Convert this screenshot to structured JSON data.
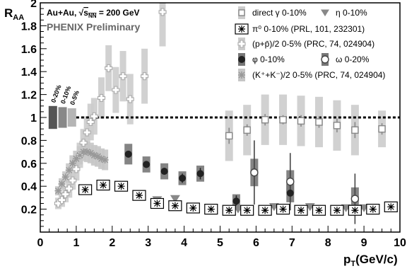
{
  "chart_data": {
    "type": "scatter",
    "title": "",
    "collision_label": "Au+Au, √s_NN = 200 GeV",
    "collision_parts": {
      "pre": "Au+Au,  ",
      "root": "s",
      "sub": "NN",
      "post": " = 200 GeV"
    },
    "subtitle": "PHENIX Preliminary",
    "xlabel": "p_T(GeV/c)",
    "ylabel": "R_AA",
    "xlim": [
      0,
      10
    ],
    "ylim": [
      0,
      2
    ],
    "x_ticks": [
      "0",
      "1",
      "2",
      "3",
      "4",
      "5",
      "6",
      "7",
      "8",
      "9",
      "10"
    ],
    "y_ticks": [
      "0.2",
      "0.4",
      "0.6",
      "0.8",
      "1",
      "1.2",
      "1.4",
      "1.6",
      "1.8",
      "2"
    ],
    "reference_line": 1,
    "grid": false,
    "legend_position": "top-right",
    "norm_boxes": [
      {
        "label": "0-20%",
        "x": 0.35,
        "half_width": 1,
        "color": "#555555"
      },
      {
        "label": "0-10%",
        "x": 0.62,
        "half_width": 0.9,
        "color": "#888888"
      },
      {
        "label": "0-5%",
        "x": 0.88,
        "half_width": 0.8,
        "color": "#b5b5b5"
      }
    ],
    "series": [
      {
        "name": "direct γ 0-10%",
        "marker": "open-square",
        "color": "#888888",
        "band_color": "#cccccc",
        "points": [
          {
            "x": 5.25,
            "y": 0.84,
            "err": 0.07,
            "sys": 0.22
          },
          {
            "x": 5.75,
            "y": 0.89,
            "err": 0.05,
            "sys": 0.22
          },
          {
            "x": 6.25,
            "y": 0.98,
            "err": 0.05,
            "sys": 0.22
          },
          {
            "x": 6.75,
            "y": 0.98,
            "err": 0.04,
            "sys": 0.22
          },
          {
            "x": 7.25,
            "y": 0.97,
            "err": 0.05,
            "sys": 0.22
          },
          {
            "x": 7.75,
            "y": 0.96,
            "err": 0.05,
            "sys": 0.22
          },
          {
            "x": 8.25,
            "y": 0.93,
            "err": 0.06,
            "sys": 0.22
          },
          {
            "x": 8.75,
            "y": 0.89,
            "err": 0.07,
            "sys": 0.22
          },
          {
            "x": 9.5,
            "y": 0.9,
            "err": 0.05,
            "sys": 0.16
          }
        ]
      },
      {
        "name": "η 0-10%",
        "marker": "triangle-down",
        "color": "#888888",
        "points": [
          {
            "x": 2.75,
            "y": 0.33
          },
          {
            "x": 3.25,
            "y": 0.28
          },
          {
            "x": 3.75,
            "y": 0.29
          },
          {
            "x": 4.25,
            "y": 0.22
          },
          {
            "x": 4.75,
            "y": 0.21
          },
          {
            "x": 5.5,
            "y": 0.2
          },
          {
            "x": 6.5,
            "y": 0.22
          },
          {
            "x": 7.5,
            "y": 0.22
          },
          {
            "x": 8.5,
            "y": 0.21
          },
          {
            "x": 9.0,
            "y": 0.21
          }
        ]
      },
      {
        "name": "π⁰ 0-10% (PRL, 101, 232301)",
        "marker": "boxed-star",
        "color": "#000000",
        "points": [
          {
            "x": 1.25,
            "y": 0.37
          },
          {
            "x": 1.75,
            "y": 0.41
          },
          {
            "x": 2.25,
            "y": 0.4
          },
          {
            "x": 2.75,
            "y": 0.32
          },
          {
            "x": 3.25,
            "y": 0.25
          },
          {
            "x": 3.75,
            "y": 0.23
          },
          {
            "x": 4.25,
            "y": 0.21
          },
          {
            "x": 4.75,
            "y": 0.2
          },
          {
            "x": 5.25,
            "y": 0.19
          },
          {
            "x": 5.75,
            "y": 0.19
          },
          {
            "x": 6.25,
            "y": 0.19
          },
          {
            "x": 6.75,
            "y": 0.2
          },
          {
            "x": 7.25,
            "y": 0.19
          },
          {
            "x": 7.75,
            "y": 0.19
          },
          {
            "x": 8.25,
            "y": 0.19
          },
          {
            "x": 8.75,
            "y": 0.19
          },
          {
            "x": 9.25,
            "y": 0.2
          },
          {
            "x": 9.75,
            "y": 0.22
          }
        ]
      },
      {
        "name": "(p+p̄)/2 0-5% (PRC, 74, 024904)",
        "marker": "open-cross",
        "color": "#aaaaaa",
        "band_color": "#cccccc",
        "points": [
          {
            "x": 0.5,
            "y": 0.25,
            "sys": 0.05
          },
          {
            "x": 0.6,
            "y": 0.28,
            "sys": 0.06
          },
          {
            "x": 0.7,
            "y": 0.33,
            "sys": 0.07
          },
          {
            "x": 0.8,
            "y": 0.38,
            "sys": 0.08
          },
          {
            "x": 0.9,
            "y": 0.45,
            "sys": 0.08
          },
          {
            "x": 1.0,
            "y": 0.55,
            "sys": 0.1
          },
          {
            "x": 1.1,
            "y": 0.67,
            "sys": 0.11
          },
          {
            "x": 1.2,
            "y": 0.78,
            "sys": 0.12
          },
          {
            "x": 1.3,
            "y": 0.87,
            "sys": 0.14
          },
          {
            "x": 1.4,
            "y": 0.96,
            "sys": 0.16
          },
          {
            "x": 1.5,
            "y": 1.01,
            "sys": 0.16
          },
          {
            "x": 1.7,
            "y": 1.17,
            "sys": 0.18
          },
          {
            "x": 1.9,
            "y": 1.43,
            "sys": 0.2
          },
          {
            "x": 2.1,
            "y": 1.24,
            "sys": 0.2
          },
          {
            "x": 2.3,
            "y": 1.36,
            "sys": 0.22
          },
          {
            "x": 2.5,
            "y": 1.16,
            "sys": 0.22
          },
          {
            "x": 2.9,
            "y": 1.36,
            "sys": 0.24
          },
          {
            "x": 3.4,
            "y": 1.92,
            "sys": 0.3
          }
        ]
      },
      {
        "name": "φ 0-10%",
        "marker": "filled-circle",
        "color": "#222222",
        "band_color": "#777777",
        "points": [
          {
            "x": 2.45,
            "y": 0.68,
            "err": 0.03,
            "sys": 0.09
          },
          {
            "x": 2.95,
            "y": 0.59,
            "err": 0.03,
            "sys": 0.07
          },
          {
            "x": 3.45,
            "y": 0.53,
            "err": 0.03,
            "sys": 0.07
          },
          {
            "x": 3.95,
            "y": 0.47,
            "err": 0.04,
            "sys": 0.06
          },
          {
            "x": 4.45,
            "y": 0.51,
            "err": 0.05,
            "sys": 0.07
          },
          {
            "x": 5.45,
            "y": 0.27,
            "err": 0.05,
            "sys": 0.06
          },
          {
            "x": 6.95,
            "y": 0.34,
            "err": 0.08,
            "sys": 0.08
          }
        ]
      },
      {
        "name": "ω 0-20%",
        "marker": "open-circle",
        "color": "#444444",
        "band_color": "#777777",
        "points": [
          {
            "x": 5.95,
            "y": 0.52,
            "err": 0.28,
            "sys": 0.12
          },
          {
            "x": 6.95,
            "y": 0.44,
            "err": 0.25,
            "sys": 0.1
          },
          {
            "x": 8.75,
            "y": 0.29,
            "err": 0.22,
            "sys": 0.1
          }
        ]
      },
      {
        "name": "(K⁺+K⁻)/2 0-5% (PRC, 74, 024904)",
        "marker": "star",
        "color": "#999999",
        "band_color": "#c6c6c6",
        "points": [
          {
            "x": 0.5,
            "y": 0.36,
            "sys": 0.04
          },
          {
            "x": 0.6,
            "y": 0.42,
            "sys": 0.05
          },
          {
            "x": 0.7,
            "y": 0.48,
            "sys": 0.05
          },
          {
            "x": 0.8,
            "y": 0.54,
            "sys": 0.06
          },
          {
            "x": 0.9,
            "y": 0.6,
            "sys": 0.07
          },
          {
            "x": 1.0,
            "y": 0.64,
            "sys": 0.07
          },
          {
            "x": 1.1,
            "y": 0.67,
            "sys": 0.08
          },
          {
            "x": 1.2,
            "y": 0.7,
            "sys": 0.08
          },
          {
            "x": 1.3,
            "y": 0.7,
            "sys": 0.09
          },
          {
            "x": 1.4,
            "y": 0.69,
            "sys": 0.09
          },
          {
            "x": 1.5,
            "y": 0.67,
            "sys": 0.09
          },
          {
            "x": 1.6,
            "y": 0.66,
            "sys": 0.09
          },
          {
            "x": 1.7,
            "y": 0.64,
            "sys": 0.09
          },
          {
            "x": 1.8,
            "y": 0.63,
            "sys": 0.09
          }
        ]
      }
    ]
  }
}
